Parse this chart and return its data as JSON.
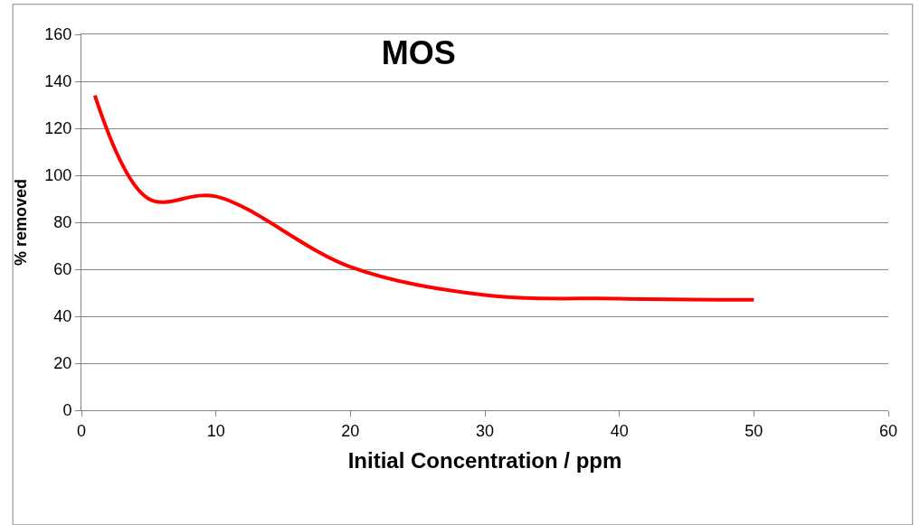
{
  "chart_data": {
    "type": "line",
    "title": "MOS",
    "xlabel": "Initial Concentration / ppm",
    "ylabel": "% removed",
    "x": [
      1,
      5,
      10,
      20,
      30,
      40,
      50
    ],
    "series": [
      {
        "color": "#ff0000",
        "values": [
          134,
          90,
          91,
          61,
          49,
          47.5,
          47
        ]
      }
    ],
    "xlim": [
      0,
      60
    ],
    "xticks": [
      0,
      10,
      20,
      30,
      40,
      50,
      60
    ],
    "ylim": [
      0,
      160
    ],
    "yticks": [
      0,
      20,
      40,
      60,
      80,
      100,
      120,
      140,
      160
    ],
    "grid": "y",
    "marker": "none",
    "line_style": "solid"
  }
}
